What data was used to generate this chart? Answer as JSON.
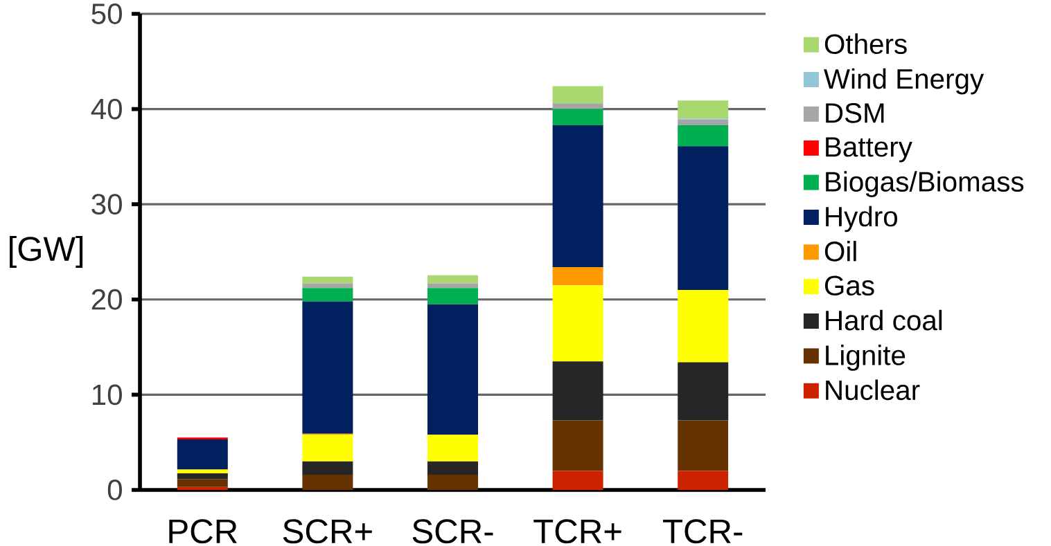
{
  "chart_data": {
    "type": "bar",
    "stacked": true,
    "ylabel": "[GW]",
    "categories": [
      "PCR",
      "SCR+",
      "SCR-",
      "TCR+",
      "TCR-"
    ],
    "ylim": [
      0,
      50
    ],
    "yticks": [
      0,
      10,
      20,
      30,
      40,
      50
    ],
    "grid": "y",
    "legend": "right",
    "series": [
      {
        "name": "Nuclear",
        "color": "#cc2200",
        "values": [
          0.3,
          0,
          0,
          2.0,
          2.0
        ]
      },
      {
        "name": "Lignite",
        "color": "#663300",
        "values": [
          0.85,
          1.6,
          1.6,
          5.3,
          5.3
        ]
      },
      {
        "name": "Hard coal",
        "color": "#262626",
        "values": [
          0.6,
          1.4,
          1.4,
          6.2,
          6.1
        ]
      },
      {
        "name": "Gas",
        "color": "#ffff00",
        "values": [
          0.4,
          2.8,
          2.8,
          8.0,
          7.6
        ]
      },
      {
        "name": "Oil",
        "color": "#ff9900",
        "values": [
          0,
          0.1,
          0,
          1.9,
          0
        ]
      },
      {
        "name": "Hydro",
        "color": "#002060",
        "values": [
          3.15,
          13.9,
          13.7,
          14.9,
          15.1
        ]
      },
      {
        "name": "Biogas/Biomass",
        "color": "#00b050",
        "values": [
          0,
          1.4,
          1.7,
          1.7,
          2.2
        ]
      },
      {
        "name": "Battery",
        "color": "#ff0000",
        "values": [
          0.2,
          0,
          0,
          0,
          0
        ]
      },
      {
        "name": "DSM",
        "color": "#a6a6a6",
        "values": [
          0,
          0.5,
          0.5,
          0.6,
          0.6
        ]
      },
      {
        "name": "Wind Energy",
        "color": "#92c5d5",
        "values": [
          0,
          0,
          0,
          0,
          0.1
        ]
      },
      {
        "name": "Others",
        "color": "#a9d86e",
        "values": [
          0,
          0.7,
          0.85,
          1.8,
          1.9
        ]
      }
    ]
  }
}
